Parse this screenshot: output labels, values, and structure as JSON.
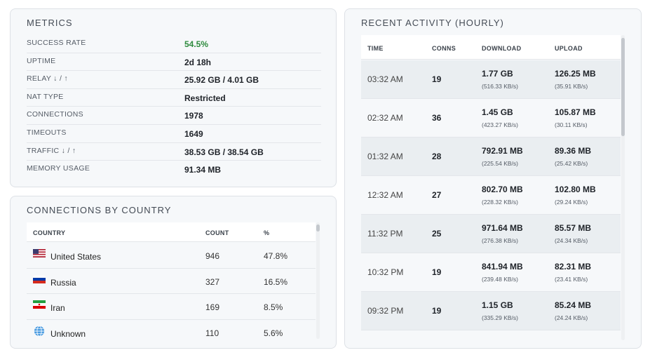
{
  "metrics": {
    "title": "METRICS",
    "rows": [
      {
        "label": "SUCCESS RATE",
        "value": "54.5%"
      },
      {
        "label": "UPTIME",
        "value": "2d 18h"
      },
      {
        "label": "RELAY ↓ / ↑",
        "value": "25.92 GB / 4.01 GB"
      },
      {
        "label": "NAT TYPE",
        "value": "Restricted"
      },
      {
        "label": "CONNECTIONS",
        "value": "1978"
      },
      {
        "label": "TIMEOUTS",
        "value": "1649"
      },
      {
        "label": "TRAFFIC ↓ / ↑",
        "value": "38.53 GB / 38.54 GB"
      },
      {
        "label": "MEMORY USAGE",
        "value": "91.34 MB"
      }
    ],
    "success_color": "#2e8b3e"
  },
  "countries": {
    "title": "CONNECTIONS BY COUNTRY",
    "headers": {
      "country": "COUNTRY",
      "count": "COUNT",
      "pct": "%"
    },
    "rows": [
      {
        "flag": "us-flag-icon",
        "name": "United States",
        "count": "946",
        "pct": "47.8%"
      },
      {
        "flag": "ru-flag-icon",
        "name": "Russia",
        "count": "327",
        "pct": "16.5%"
      },
      {
        "flag": "ir-flag-icon",
        "name": "Iran",
        "count": "169",
        "pct": "8.5%"
      },
      {
        "flag": "globe-icon",
        "name": "Unknown",
        "count": "110",
        "pct": "5.6%"
      }
    ]
  },
  "activity": {
    "title": "RECENT ACTIVITY (HOURLY)",
    "headers": {
      "time": "TIME",
      "conns": "CONNS",
      "download": "DOWNLOAD",
      "upload": "UPLOAD"
    },
    "rows": [
      {
        "time": "03:32 AM",
        "conns": "19",
        "download": "1.77 GB",
        "download_rate": "(516.33 KB/s)",
        "upload": "126.25 MB",
        "upload_rate": "(35.91 KB/s)"
      },
      {
        "time": "02:32 AM",
        "conns": "36",
        "download": "1.45 GB",
        "download_rate": "(423.27 KB/s)",
        "upload": "105.87 MB",
        "upload_rate": "(30.11 KB/s)"
      },
      {
        "time": "01:32 AM",
        "conns": "28",
        "download": "792.91 MB",
        "download_rate": "(225.54 KB/s)",
        "upload": "89.36 MB",
        "upload_rate": "(25.42 KB/s)"
      },
      {
        "time": "12:32 AM",
        "conns": "27",
        "download": "802.70 MB",
        "download_rate": "(228.32 KB/s)",
        "upload": "102.80 MB",
        "upload_rate": "(29.24 KB/s)"
      },
      {
        "time": "11:32 PM",
        "conns": "25",
        "download": "971.64 MB",
        "download_rate": "(276.38 KB/s)",
        "upload": "85.57 MB",
        "upload_rate": "(24.34 KB/s)"
      },
      {
        "time": "10:32 PM",
        "conns": "19",
        "download": "841.94 MB",
        "download_rate": "(239.48 KB/s)",
        "upload": "82.31 MB",
        "upload_rate": "(23.41 KB/s)"
      },
      {
        "time": "09:32 PM",
        "conns": "19",
        "download": "1.15 GB",
        "download_rate": "(335.29 KB/s)",
        "upload": "85.24 MB",
        "upload_rate": "(24.24 KB/s)"
      }
    ]
  }
}
